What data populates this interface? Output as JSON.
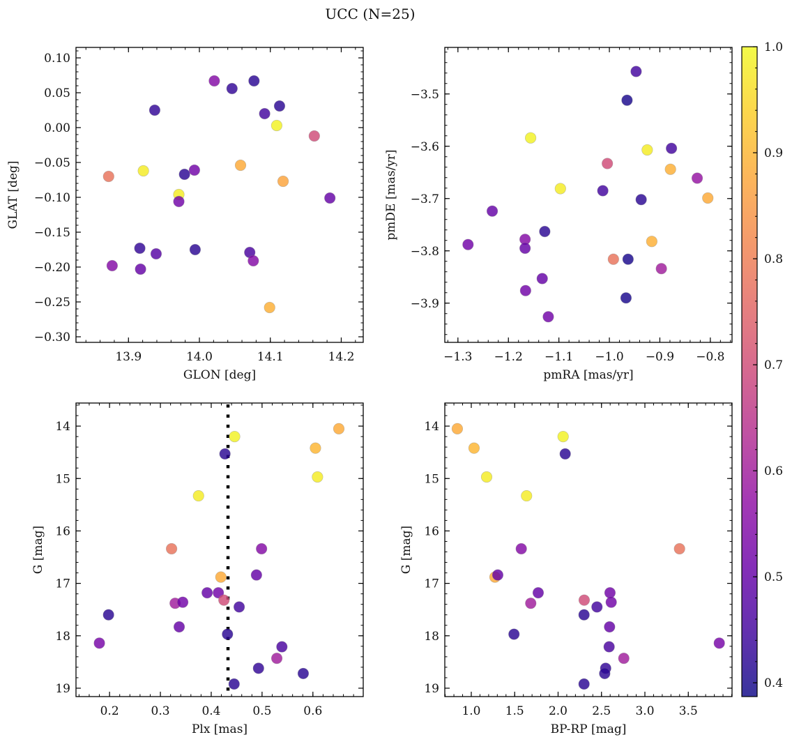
{
  "title": "UCC (N=25)",
  "colorbar": {
    "cmap": "plasma",
    "range": [
      0.387,
      1.0
    ],
    "ticks": [
      0.4,
      0.5,
      0.6,
      0.7,
      0.8,
      0.9,
      1.0
    ],
    "tick_labels": [
      "0.4",
      "0.5",
      "0.6",
      "0.7",
      "0.8",
      "0.9",
      "1.0"
    ]
  },
  "chart_data": [
    {
      "type": "scatter",
      "xlabel": "GLON [deg]",
      "ylabel": "GLAT [deg]",
      "xlim": [
        13.826,
        14.231
      ],
      "ylim": [
        -0.308,
        0.115
      ],
      "y_inverted": false,
      "xticks": [
        13.9,
        14.0,
        14.1,
        14.2
      ],
      "xtick_labels": [
        "13.9",
        "14.0",
        "14.1",
        "14.2"
      ],
      "x_minor_step": 0.02,
      "yticks": [
        0.1,
        0.05,
        0.0,
        -0.05,
        -0.1,
        -0.15,
        -0.2,
        -0.25,
        -0.3
      ],
      "ytick_labels": [
        "0.10",
        "0.05",
        "0.00",
        "−0.05",
        "−0.10",
        "−0.15",
        "−0.20",
        "−0.25",
        "−0.30"
      ],
      "y_minor_step": 0.01,
      "x": [
        14.021,
        14.046,
        14.077,
        13.937,
        14.113,
        14.092,
        14.109,
        14.162,
        13.872,
        13.921,
        13.979,
        13.993,
        14.058,
        14.118,
        13.971,
        13.971,
        14.184,
        13.916,
        13.994,
        13.939,
        14.071,
        14.076,
        13.877,
        13.917,
        14.099
      ],
      "y": [
        0.067,
        0.056,
        0.067,
        0.025,
        0.031,
        0.02,
        0.003,
        -0.012,
        -0.07,
        -0.062,
        -0.067,
        -0.061,
        -0.054,
        -0.077,
        -0.096,
        -0.106,
        -0.101,
        -0.173,
        -0.175,
        -0.181,
        -0.179,
        -0.191,
        -0.198,
        -0.203,
        -0.258
      ],
      "c": [
        0.55,
        0.43,
        0.42,
        0.43,
        0.42,
        0.45,
        0.99,
        0.7,
        0.78,
        0.98,
        0.42,
        0.52,
        0.88,
        0.87,
        0.98,
        0.52,
        0.5,
        0.43,
        0.42,
        0.48,
        0.46,
        0.55,
        0.55,
        0.5,
        0.89
      ]
    },
    {
      "type": "scatter",
      "xlabel": "pmRA [mas/yr]",
      "ylabel": "pmDE [mas/yr]",
      "xlim": [
        -1.326,
        -0.757
      ],
      "ylim": [
        -3.975,
        -3.411
      ],
      "y_inverted": false,
      "xticks": [
        -1.3,
        -1.2,
        -1.1,
        -1.0,
        -0.9,
        -0.8
      ],
      "xtick_labels": [
        "−1.3",
        "−1.2",
        "−1.1",
        "−1.0",
        "−0.9",
        "−0.8"
      ],
      "x_minor_step": 0.02,
      "yticks": [
        -3.5,
        -3.6,
        -3.7,
        -3.8,
        -3.9
      ],
      "ytick_labels": [
        "−3.5",
        "−3.6",
        "−3.7",
        "−3.8",
        "−3.9"
      ],
      "y_minor_step": 0.02,
      "x": [
        -0.947,
        -0.965,
        -1.156,
        -0.925,
        -0.877,
        -1.004,
        -0.879,
        -0.826,
        -1.097,
        -1.013,
        -0.805,
        -0.937,
        -1.232,
        -1.128,
        -1.28,
        -1.167,
        -1.167,
        -0.916,
        -0.992,
        -0.963,
        -0.897,
        -1.133,
        -1.166,
        -0.967,
        -1.121
      ],
      "y": [
        -3.457,
        -3.512,
        -3.584,
        -3.607,
        -3.604,
        -3.633,
        -3.644,
        -3.661,
        -3.681,
        -3.685,
        -3.699,
        -3.702,
        -3.724,
        -3.763,
        -3.788,
        -3.778,
        -3.795,
        -3.782,
        -3.816,
        -3.816,
        -3.834,
        -3.853,
        -3.876,
        -3.89,
        -3.926
      ],
      "c": [
        0.45,
        0.4,
        0.99,
        0.98,
        0.45,
        0.7,
        0.89,
        0.58,
        0.98,
        0.45,
        0.88,
        0.42,
        0.5,
        0.42,
        0.52,
        0.55,
        0.5,
        0.89,
        0.78,
        0.4,
        0.6,
        0.5,
        0.52,
        0.4,
        0.52
      ]
    },
    {
      "type": "scatter",
      "xlabel": "Plx [mas]",
      "ylabel": "G [mag]",
      "xlim": [
        0.134,
        0.699
      ],
      "ylim": [
        13.56,
        19.16
      ],
      "y_inverted": true,
      "xticks": [
        0.2,
        0.3,
        0.4,
        0.5,
        0.6
      ],
      "xtick_labels": [
        "0.2",
        "0.3",
        "0.4",
        "0.5",
        "0.6"
      ],
      "x_minor_step": 0.02,
      "yticks": [
        14,
        15,
        16,
        17,
        18,
        19
      ],
      "ytick_labels": [
        "14",
        "15",
        "16",
        "17",
        "18",
        "19"
      ],
      "y_minor_step": 0.2,
      "reference_line": {
        "x": 0.433,
        "style": "dotted",
        "color": "#000000"
      },
      "x": [
        0.446,
        0.427,
        0.651,
        0.605,
        0.609,
        0.375,
        0.322,
        0.499,
        0.419,
        0.489,
        0.392,
        0.414,
        0.425,
        0.329,
        0.344,
        0.455,
        0.198,
        0.337,
        0.432,
        0.18,
        0.539,
        0.529,
        0.493,
        0.581,
        0.445
      ],
      "y": [
        14.2,
        14.53,
        14.05,
        14.42,
        14.97,
        15.33,
        16.34,
        16.34,
        16.88,
        16.84,
        17.18,
        17.18,
        17.32,
        17.38,
        17.36,
        17.45,
        17.6,
        17.83,
        17.97,
        18.14,
        18.21,
        18.43,
        18.62,
        18.72,
        18.92
      ],
      "c": [
        0.99,
        0.42,
        0.88,
        0.9,
        0.98,
        0.98,
        0.78,
        0.55,
        0.88,
        0.5,
        0.5,
        0.52,
        0.7,
        0.6,
        0.52,
        0.45,
        0.42,
        0.5,
        0.42,
        0.53,
        0.46,
        0.6,
        0.43,
        0.42,
        0.42
      ]
    },
    {
      "type": "scatter",
      "xlabel": "BP-RP [mag]",
      "ylabel": "G [mag]",
      "xlim": [
        0.695,
        4.004
      ],
      "ylim": [
        13.56,
        19.16
      ],
      "y_inverted": true,
      "xticks": [
        1.0,
        1.5,
        2.0,
        2.5,
        3.0,
        3.5
      ],
      "xtick_labels": [
        "1.0",
        "1.5",
        "2.0",
        "2.5",
        "3.0",
        "3.5"
      ],
      "x_minor_step": 0.1,
      "yticks": [
        14,
        15,
        16,
        17,
        18,
        19
      ],
      "ytick_labels": [
        "14",
        "15",
        "16",
        "17",
        "18",
        "19"
      ],
      "y_minor_step": 0.2,
      "x": [
        2.058,
        2.082,
        0.839,
        1.032,
        1.177,
        1.637,
        3.399,
        1.576,
        1.273,
        1.305,
        1.771,
        2.598,
        2.301,
        1.685,
        2.612,
        2.448,
        2.299,
        2.593,
        1.492,
        3.857,
        2.588,
        2.757,
        2.548,
        2.537,
        2.299
      ],
      "y": [
        14.2,
        14.53,
        14.05,
        14.42,
        14.97,
        15.33,
        16.34,
        16.34,
        16.88,
        16.84,
        17.18,
        17.18,
        17.32,
        17.38,
        17.36,
        17.45,
        17.6,
        17.83,
        17.97,
        18.14,
        18.21,
        18.43,
        18.62,
        18.72,
        18.92
      ],
      "c": [
        0.99,
        0.42,
        0.88,
        0.9,
        0.98,
        0.98,
        0.78,
        0.55,
        0.88,
        0.5,
        0.5,
        0.52,
        0.7,
        0.6,
        0.52,
        0.45,
        0.42,
        0.5,
        0.42,
        0.53,
        0.46,
        0.6,
        0.43,
        0.42,
        0.42
      ]
    }
  ]
}
